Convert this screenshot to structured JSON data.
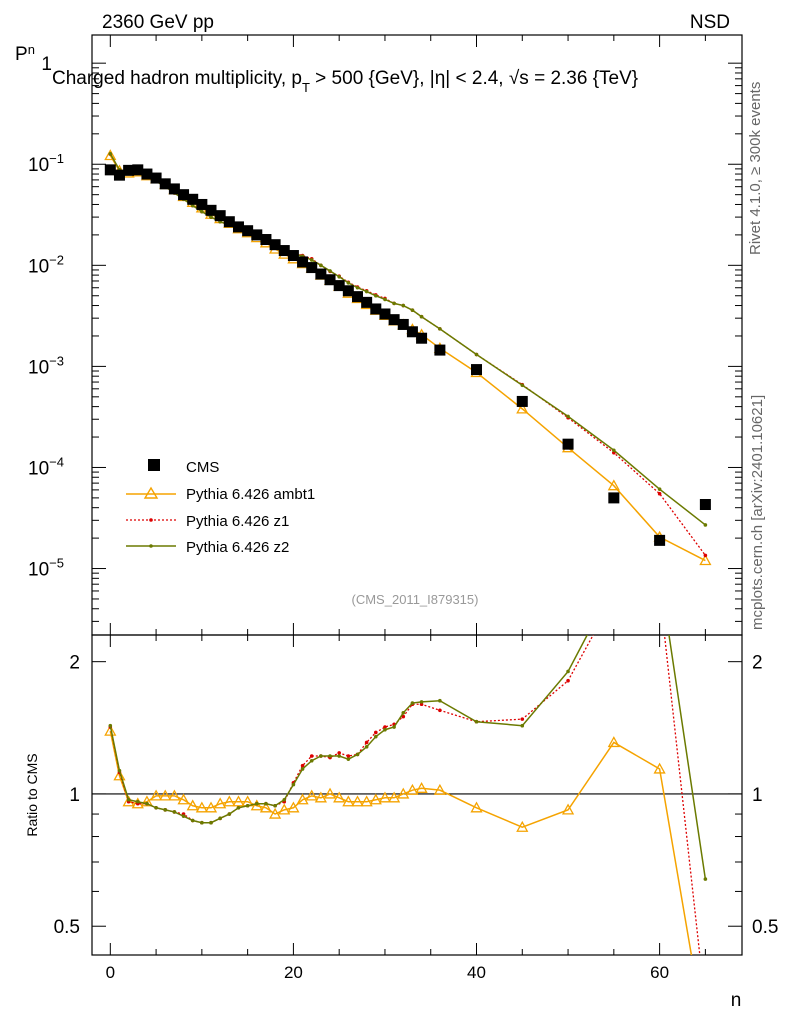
{
  "header": {
    "left": "2360 GeV pp",
    "right": "NSD",
    "title": "Charged hadron multiplicity, p",
    "title_sub": "T",
    "title_rest": " > 500 {GeV}, |η| < 2.4, √s = 2.36 {TeV}",
    "watermark": "(CMS_2011_I879315)"
  },
  "side": {
    "top": "Rivet 4.1.0, ≥ 300k events",
    "bottom": "mcplots.cern.ch [arXiv:2401.10621]"
  },
  "axes": {
    "ylabel_main": "P",
    "ylabel_main_sub": "n",
    "ylabel_ratio": "Ratio to CMS",
    "xlabel": "n",
    "main_ticks": [
      {
        "v": 1,
        "label": "1",
        "sup": ""
      },
      {
        "v": 0.1,
        "label": "10",
        "sup": "−1"
      },
      {
        "v": 0.01,
        "label": "10",
        "sup": "−2"
      },
      {
        "v": 0.001,
        "label": "10",
        "sup": "−3"
      },
      {
        "v": 0.0001,
        "label": "10",
        "sup": "−4"
      },
      {
        "v": 1e-05,
        "label": "10",
        "sup": "−5"
      }
    ],
    "ratio_ticks": [
      {
        "v": 0.5,
        "label": "0.5"
      },
      {
        "v": 1,
        "label": "1"
      },
      {
        "v": 2,
        "label": "2"
      }
    ],
    "x_ticks": [
      {
        "v": 0,
        "label": "0"
      },
      {
        "v": 20,
        "label": "20"
      },
      {
        "v": 40,
        "label": "40"
      },
      {
        "v": 60,
        "label": "60"
      }
    ]
  },
  "legend": {
    "cms": "CMS",
    "ambt1": "Pythia 6.426 ambt1",
    "z1": "Pythia 6.426 z1",
    "z2": "Pythia 6.426 z2"
  },
  "colors": {
    "cms": "#000000",
    "ambt1": "#f5a300",
    "z1": "#dd0000",
    "z2": "#6b7a00"
  },
  "chart_data": {
    "type": "scatter",
    "title": "Charged hadron multiplicity, pT > 500 {GeV}, |η| < 2.4, √s = 2.36 {TeV}",
    "xlabel": "n",
    "ylabel": "Pn",
    "xlim": [
      -2,
      69
    ],
    "ylim_main": [
      2.2e-06,
      1.9
    ],
    "ylim_ratio": [
      0.43,
      2.3
    ],
    "yscale_main": "log",
    "yscale_ratio": "log",
    "x": [
      0,
      1,
      2,
      3,
      4,
      5,
      6,
      7,
      8,
      9,
      10,
      11,
      12,
      13,
      14,
      15,
      16,
      17,
      18,
      19,
      20,
      21,
      22,
      23,
      24,
      25,
      26,
      27,
      28,
      29,
      30,
      31,
      32,
      33,
      34,
      36,
      40,
      45,
      50,
      55,
      60,
      65
    ],
    "series": [
      {
        "name": "CMS",
        "values": [
          0.088,
          0.078,
          0.087,
          0.088,
          0.08,
          0.073,
          0.064,
          0.057,
          0.05,
          0.045,
          0.04,
          0.035,
          0.031,
          0.027,
          0.024,
          0.022,
          0.02,
          0.018,
          0.016,
          0.014,
          0.0125,
          0.0108,
          0.0095,
          0.0082,
          0.0072,
          0.0063,
          0.0056,
          0.0049,
          0.0043,
          0.0037,
          0.0033,
          0.0029,
          0.0026,
          0.0022,
          0.0019,
          0.00145,
          0.00093,
          0.00045,
          0.00017,
          5e-05,
          1.9e-05,
          4.3e-05
        ]
      },
      {
        "name": "Pythia 6.426 ambt1",
        "values": [
          0.122,
          0.086,
          0.082,
          0.084,
          0.077,
          0.072,
          0.063,
          0.056,
          0.048,
          0.042,
          0.037,
          0.032,
          0.029,
          0.026,
          0.023,
          0.021,
          0.0188,
          0.0167,
          0.0145,
          0.0129,
          0.0116,
          0.0104,
          0.0094,
          0.008,
          0.0071,
          0.0062,
          0.0053,
          0.0047,
          0.0041,
          0.0036,
          0.0032,
          0.00282,
          0.00258,
          0.00232,
          0.00206,
          0.00151,
          0.00087,
          0.00038,
          0.000157,
          6.6e-05,
          2.05e-05,
          1.2e-05
        ]
      },
      {
        "name": "Pythia 6.426 z1",
        "values": [
          0.126,
          0.088,
          0.083,
          0.084,
          0.076,
          0.068,
          0.06,
          0.052,
          0.045,
          0.039,
          0.034,
          0.03,
          0.027,
          0.025,
          0.023,
          0.021,
          0.019,
          0.017,
          0.015,
          0.0134,
          0.0133,
          0.0125,
          0.0116,
          0.01,
          0.0087,
          0.0078,
          0.0068,
          0.0061,
          0.0056,
          0.0051,
          0.0047,
          0.0042,
          0.004,
          0.0036,
          0.0031,
          0.00235,
          0.00131,
          0.00066,
          0.00031,
          0.00014,
          5.5e-05,
          1.35e-05
        ]
      },
      {
        "name": "Pythia 6.426 z2",
        "values": [
          0.127,
          0.088,
          0.083,
          0.084,
          0.076,
          0.068,
          0.06,
          0.052,
          0.045,
          0.039,
          0.034,
          0.03,
          0.027,
          0.025,
          0.023,
          0.021,
          0.019,
          0.017,
          0.015,
          0.0136,
          0.0131,
          0.0123,
          0.0113,
          0.01,
          0.0088,
          0.0077,
          0.0067,
          0.006,
          0.0055,
          0.005,
          0.0046,
          0.0042,
          0.004,
          0.0036,
          0.0031,
          0.00235,
          0.00131,
          0.00065,
          0.00032,
          0.000148,
          6.1e-05,
          2.7e-05
        ]
      }
    ],
    "ratio_series": [
      {
        "name": "Pythia 6.426 ambt1",
        "values": [
          1.39,
          1.1,
          0.96,
          0.95,
          0.96,
          0.99,
          0.99,
          0.99,
          0.97,
          0.94,
          0.93,
          0.93,
          0.95,
          0.96,
          0.96,
          0.96,
          0.94,
          0.93,
          0.9,
          0.92,
          0.93,
          0.97,
          0.99,
          0.98,
          1.0,
          0.98,
          0.96,
          0.96,
          0.96,
          0.97,
          0.98,
          0.98,
          1.0,
          1.02,
          1.03,
          1.02,
          0.93,
          0.84,
          0.92,
          1.31,
          1.14,
          0.28
        ]
      },
      {
        "name": "Pythia 6.426 z1",
        "values": [
          1.42,
          1.12,
          0.96,
          0.95,
          0.95,
          0.93,
          0.92,
          0.91,
          0.9,
          0.87,
          0.86,
          0.86,
          0.88,
          0.9,
          0.93,
          0.94,
          0.95,
          0.95,
          0.94,
          0.96,
          1.06,
          1.16,
          1.22,
          1.22,
          1.21,
          1.24,
          1.22,
          1.23,
          1.31,
          1.38,
          1.42,
          1.44,
          1.5,
          1.6,
          1.6,
          1.55,
          1.46,
          1.48,
          1.81,
          2.8,
          2.9,
          0.33
        ]
      },
      {
        "name": "Pythia 6.426 z2",
        "values": [
          1.43,
          1.13,
          0.97,
          0.96,
          0.95,
          0.93,
          0.92,
          0.91,
          0.89,
          0.87,
          0.86,
          0.86,
          0.88,
          0.9,
          0.93,
          0.94,
          0.95,
          0.95,
          0.94,
          0.97,
          1.05,
          1.14,
          1.19,
          1.22,
          1.22,
          1.22,
          1.2,
          1.23,
          1.28,
          1.35,
          1.4,
          1.42,
          1.53,
          1.61,
          1.62,
          1.63,
          1.46,
          1.43,
          1.9,
          3.0,
          3.2,
          0.64
        ]
      }
    ]
  }
}
